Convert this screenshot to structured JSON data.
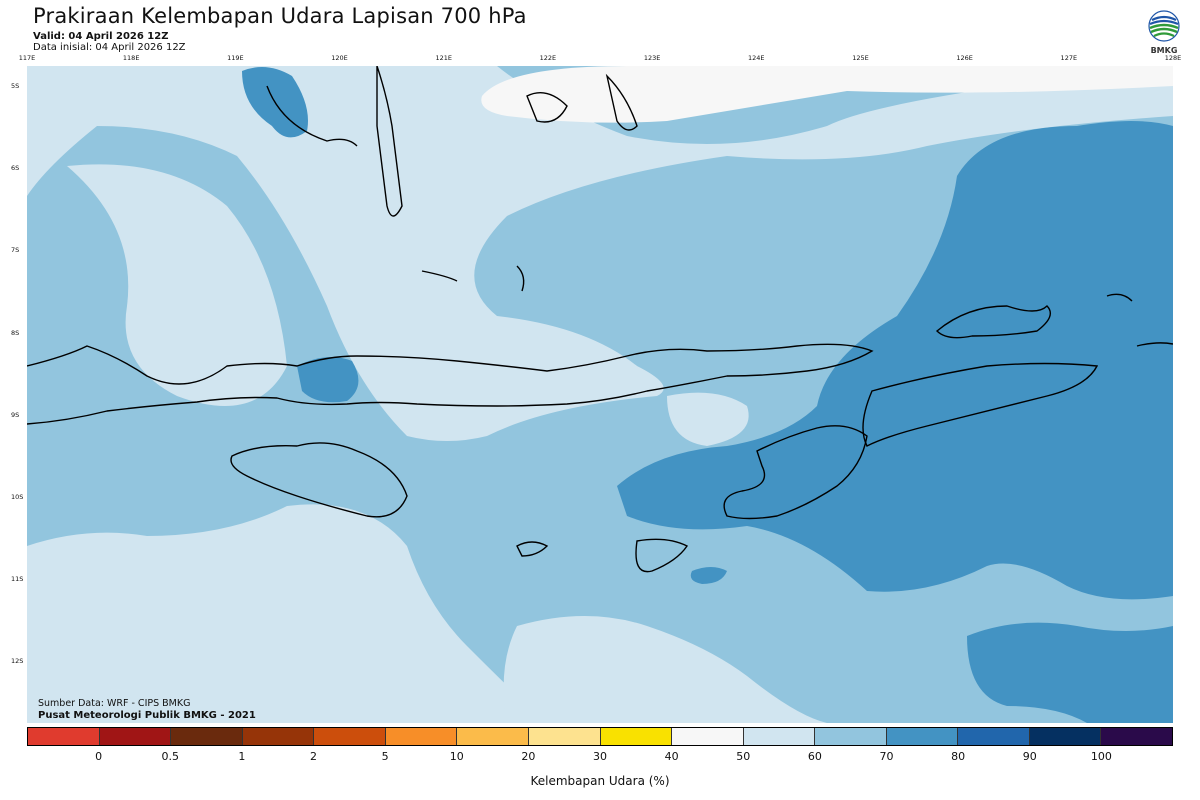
{
  "header": {
    "title": "Prakiraan Kelembapan Udara Lapisan 700 hPa",
    "valid": "Valid: 04 April 2026 12Z",
    "initial": "Data inisial: 04 April 2026 12Z"
  },
  "logo": {
    "text": "BMKG",
    "icon": "bmkg-logo-icon"
  },
  "map": {
    "lon_labels": [
      "117E",
      "118E",
      "119E",
      "120E",
      "121E",
      "122E",
      "123E",
      "124E",
      "125E",
      "126E",
      "127E",
      "128E"
    ],
    "lat_labels": [
      "5S",
      "6S",
      "7S",
      "8S",
      "9S",
      "10S",
      "11S",
      "12S"
    ]
  },
  "credits": {
    "source": "Sumber Data: WRF - CIPS BMKG",
    "publisher": "Pusat Meteorologi Publik BMKG - 2021"
  },
  "colorbar": {
    "colors": [
      "#e03b2e",
      "#a01515",
      "#6a2a0d",
      "#963408",
      "#cc4e0c",
      "#f78e28",
      "#fbbb4a",
      "#fde28f",
      "#f9e100",
      "#f7f7f7",
      "#d1e5f0",
      "#92c5de",
      "#4393c3",
      "#2166ac",
      "#053061",
      "#2a0a4a"
    ],
    "ticks": [
      "0",
      "0.5",
      "1",
      "2",
      "5",
      "10",
      "20",
      "30",
      "40",
      "50",
      "60",
      "70",
      "80",
      "90",
      "100"
    ],
    "label": "Kelembapan Udara (%)"
  }
}
